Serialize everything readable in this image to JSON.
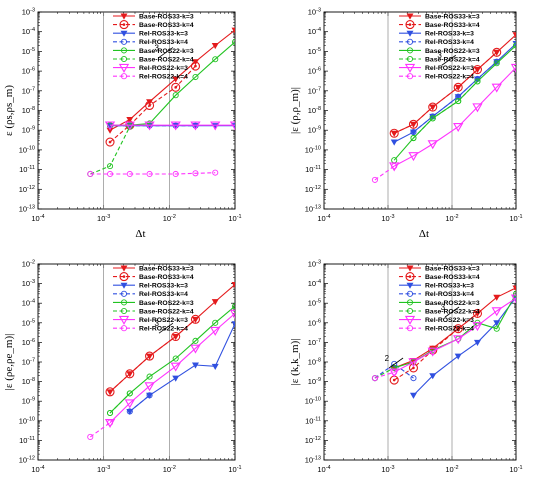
{
  "colors": {
    "Base-ROS33": "#e41a1c",
    "Rel-ROS33": "#3050e0",
    "Base-ROS22": "#21c321",
    "Rel-ROS22": "#ff33ff"
  },
  "legend_entries": [
    "Base-ROS33-k=3",
    "Base-ROS33-k=4",
    "Rel-ROS33-k=3",
    "Rel-ROS33-k=4",
    "Base-ROS22-k=3",
    "Base-ROS22-k=4",
    "Rel-ROS22-k=3",
    "Rel-ROS22-k=4"
  ],
  "chart_data": [
    {
      "type": "line",
      "xscale": "log",
      "yscale": "log",
      "xlim": [
        0.0001,
        0.1
      ],
      "ylim": [
        1e-13,
        0.001
      ],
      "xlabel": "Δt",
      "ylabel": "ε (ρs,ρs_m)",
      "yticks": [
        "10^-13",
        "10^-12",
        "10^-11",
        "10^-10",
        "10^-9",
        "10^-8",
        "10^-7",
        "10^-6",
        "10^-5",
        "10^-4",
        "10^-3"
      ],
      "xticks": [
        "10^-4",
        "10^-3",
        "10^-2",
        "10^-1"
      ],
      "legend": "top-right",
      "slope_annotations": [
        {
          "text": "3",
          "x": 0.008,
          "y": 1e-05
        }
      ],
      "series": [
        {
          "name": "Base-ROS33-k=3",
          "color": "#e41a1c",
          "dash": false,
          "marker": "tri",
          "x": [
            0.00125,
            0.0025,
            0.005,
            0.0125,
            0.025,
            0.05,
            0.1
          ],
          "y": [
            1e-09,
            3.5e-09,
            2.8e-08,
            4e-07,
            3e-06,
            2e-05,
            0.00012
          ]
        },
        {
          "name": "Base-ROS33-k=4",
          "color": "#e41a1c",
          "dash": true,
          "marker": "circle",
          "x": [
            0.00125,
            0.0025,
            0.005,
            0.0125,
            0.025
          ],
          "y": [
            2.5e-10,
            1.8e-09,
            1.8e-08,
            1.5e-07,
            1.8e-06
          ]
        },
        {
          "name": "Rel-ROS33-k=3",
          "color": "#3050e0",
          "dash": false,
          "marker": "tri",
          "x": [
            0.00125,
            0.0025,
            0.005,
            0.0125,
            0.025,
            0.05,
            0.1
          ],
          "y": [
            1.7e-09,
            1.7e-09,
            1.7e-09,
            1.7e-09,
            1.7e-09,
            1.7e-09,
            1.7e-09
          ]
        },
        {
          "name": "Rel-ROS33-k=4",
          "color": "#3050e0",
          "dash": true,
          "marker": "circle",
          "x": [
            0.00125,
            0.0025,
            0.005,
            0.0125,
            0.025
          ],
          "y": [
            1.7e-09,
            1.7e-09,
            1.7e-09,
            1.7e-09,
            1.7e-09
          ]
        },
        {
          "name": "Base-ROS22-k=3",
          "color": "#21c321",
          "dash": false,
          "marker": "circle",
          "x": [
            0.00125,
            0.0025,
            0.005,
            0.0125,
            0.025,
            0.05,
            0.1
          ],
          "y": [
            1.8e-09,
            1.8e-09,
            2.2e-09,
            6e-08,
            5e-07,
            4e-06,
            3e-05
          ]
        },
        {
          "name": "Base-ROS22-k=4",
          "color": "#21c321",
          "dash": true,
          "marker": "circle",
          "x": [
            0.000625,
            0.00125,
            0.0025
          ],
          "y": [
            6e-12,
            1.5e-11,
            1.5e-09
          ]
        },
        {
          "name": "Rel-ROS22-k=3",
          "color": "#ff33ff",
          "dash": false,
          "marker": "tri",
          "x": [
            0.00125,
            0.0025,
            0.005,
            0.0125,
            0.025,
            0.05,
            0.1
          ],
          "y": [
            1.8e-09,
            1.8e-09,
            1.8e-09,
            1.8e-09,
            1.8e-09,
            1.8e-09,
            1.8e-09
          ]
        },
        {
          "name": "Rel-ROS22-k=4",
          "color": "#ff33ff",
          "dash": true,
          "marker": "circle",
          "x": [
            0.000625,
            0.00125,
            0.0025,
            0.005,
            0.0125,
            0.025,
            0.05
          ],
          "y": [
            6e-12,
            6e-12,
            6e-12,
            6e-12,
            6e-12,
            6.5e-12,
            7e-12
          ]
        }
      ]
    },
    {
      "type": "line",
      "xscale": "log",
      "yscale": "log",
      "xlim": [
        0.0001,
        0.1
      ],
      "ylim": [
        1e-13,
        0.001
      ],
      "xlabel": "Δt",
      "ylabel": "|ε (ρ,ρ_m)|",
      "yticks": [
        "10^-13",
        "10^-12",
        "10^-11",
        "10^-10",
        "10^-9",
        "10^-8",
        "10^-7",
        "10^-6",
        "10^-5",
        "10^-4",
        "10^-3"
      ],
      "xticks": [
        "10^-4",
        "10^-3",
        "10^-2",
        "10^-1"
      ],
      "legend": "top-right",
      "slope_annotations": [
        {
          "text": "3",
          "x": 0.008,
          "y": 4e-06
        }
      ],
      "series": [
        {
          "name": "Base-ROS33-k=3",
          "color": "#e41a1c",
          "dash": false,
          "marker": "tri",
          "x": [
            0.00125,
            0.0025,
            0.005,
            0.0125,
            0.025,
            0.05,
            0.1
          ],
          "y": [
            7e-10,
            2e-09,
            1.5e-08,
            1.5e-07,
            1.2e-06,
            9e-06,
            7e-05
          ]
        },
        {
          "name": "Base-ROS33-k=4",
          "color": "#e41a1c",
          "dash": true,
          "marker": "circle",
          "x": [
            0.00125,
            0.0025,
            0.005,
            0.0125,
            0.025,
            0.05
          ],
          "y": [
            7e-10,
            2e-09,
            1.5e-08,
            1.5e-07,
            1.2e-06,
            9e-06
          ]
        },
        {
          "name": "Rel-ROS33-k=3",
          "color": "#3050e0",
          "dash": false,
          "marker": "tri",
          "x": [
            0.00125,
            0.0025,
            0.005,
            0.0125,
            0.025,
            0.05,
            0.1
          ],
          "y": [
            2.5e-10,
            8e-10,
            5e-09,
            5e-08,
            4e-07,
            3e-06,
            2.5e-05
          ]
        },
        {
          "name": "Rel-ROS33-k=4",
          "color": "#3050e0",
          "dash": true,
          "marker": "circle",
          "x": [
            0.0025,
            0.005,
            0.0125,
            0.025,
            0.05
          ],
          "y": [
            8e-10,
            5e-09,
            5e-08,
            4e-07,
            3e-06
          ]
        },
        {
          "name": "Base-ROS22-k=3",
          "color": "#21c321",
          "dash": false,
          "marker": "circle",
          "x": [
            0.00125,
            0.0025,
            0.005,
            0.0125,
            0.025,
            0.05,
            0.1
          ],
          "y": [
            3e-11,
            4e-10,
            4e-09,
            3e-08,
            3e-07,
            2.5e-06,
            2e-05
          ]
        },
        {
          "name": "Base-ROS22-k=4",
          "color": "#21c321",
          "dash": true,
          "marker": "circle",
          "x": [
            0.0025,
            0.005,
            0.0125,
            0.025
          ],
          "y": [
            4e-10,
            4e-09,
            3e-08,
            3e-07
          ]
        },
        {
          "name": "Rel-ROS22-k=3",
          "color": "#ff33ff",
          "dash": false,
          "marker": "tri",
          "x": [
            0.00125,
            0.0025,
            0.005,
            0.0125,
            0.025,
            0.05,
            0.1
          ],
          "y": [
            1.5e-11,
            5e-11,
            2e-10,
            1.5e-09,
            1.5e-08,
            1.5e-07,
            1.5e-06
          ]
        },
        {
          "name": "Rel-ROS22-k=4",
          "color": "#ff33ff",
          "dash": true,
          "marker": "circle",
          "x": [
            0.000625,
            0.00125
          ],
          "y": [
            3e-12,
            1.5e-11
          ]
        }
      ]
    },
    {
      "type": "line",
      "xscale": "log",
      "yscale": "log",
      "xlim": [
        0.0001,
        0.1
      ],
      "ylim": [
        1e-12,
        0.01
      ],
      "xlabel": "Δt",
      "ylabel": "|ε (ρe,ρe_m)|",
      "yticks": [
        "10^-12",
        "10^-11",
        "10^-10",
        "10^-9",
        "10^-8",
        "10^-7",
        "10^-6",
        "10^-5",
        "10^-4",
        "10^-3",
        "10^-2"
      ],
      "xticks": [
        "10^-4",
        "10^-3",
        "10^-2",
        "10^-1"
      ],
      "legend": "top-right",
      "slope_annotations": [
        {
          "text": "3",
          "x": 0.008,
          "y": 6e-06
        }
      ],
      "series": [
        {
          "name": "Base-ROS33-k=3",
          "color": "#e41a1c",
          "dash": false,
          "marker": "tri",
          "x": [
            0.00125,
            0.0025,
            0.005,
            0.0125,
            0.025,
            0.05,
            0.1
          ],
          "y": [
            3e-09,
            2.5e-08,
            2e-07,
            2e-06,
            1.5e-05,
            0.00012,
            0.0009
          ]
        },
        {
          "name": "Base-ROS33-k=4",
          "color": "#e41a1c",
          "dash": true,
          "marker": "circle",
          "x": [
            0.00125,
            0.0025,
            0.005,
            0.0125,
            0.025
          ],
          "y": [
            3e-09,
            2.5e-08,
            2e-07,
            2e-06,
            1.5e-05
          ]
        },
        {
          "name": "Rel-ROS33-k=3",
          "color": "#3050e0",
          "dash": false,
          "marker": "tri",
          "x": [
            0.0025,
            0.005,
            0.0125,
            0.025,
            0.05,
            0.1
          ],
          "y": [
            3e-10,
            2e-09,
            1.5e-08,
            7e-08,
            6e-08,
            9e-06
          ]
        },
        {
          "name": "Rel-ROS33-k=4",
          "color": "#3050e0",
          "dash": true,
          "marker": "circle",
          "x": [
            0.0025,
            0.005
          ],
          "y": [
            3e-10,
            2e-09
          ]
        },
        {
          "name": "Base-ROS22-k=3",
          "color": "#21c321",
          "dash": false,
          "marker": "circle",
          "x": [
            0.00125,
            0.0025,
            0.005,
            0.0125,
            0.025,
            0.05,
            0.1
          ],
          "y": [
            2.5e-10,
            2.5e-09,
            1.8e-08,
            1.5e-07,
            1.2e-06,
            1e-05,
            7e-05
          ]
        },
        {
          "name": "Base-ROS22-k=4",
          "color": "#21c321",
          "dash": true,
          "marker": "circle",
          "x": [
            0.00125,
            0.0025
          ],
          "y": [
            2.5e-10,
            2.5e-09
          ]
        },
        {
          "name": "Rel-ROS22-k=3",
          "color": "#ff33ff",
          "dash": false,
          "marker": "tri",
          "x": [
            0.00125,
            0.0025,
            0.005,
            0.0125,
            0.025,
            0.05,
            0.1
          ],
          "y": [
            8e-11,
            8e-10,
            6e-09,
            6e-08,
            5e-07,
            4e-06,
            3e-05
          ]
        },
        {
          "name": "Rel-ROS22-k=4",
          "color": "#ff33ff",
          "dash": true,
          "marker": "circle",
          "x": [
            0.000625,
            0.00125
          ],
          "y": [
            1.5e-11,
            8e-11
          ]
        }
      ]
    },
    {
      "type": "line",
      "xscale": "log",
      "yscale": "log",
      "xlim": [
        0.0001,
        0.1
      ],
      "ylim": [
        1e-13,
        0.001
      ],
      "xlabel": "Δt",
      "ylabel": "|ε (k,k_m)|",
      "yticks": [
        "10^-13",
        "10^-12",
        "10^-11",
        "10^-10",
        "10^-9",
        "10^-8",
        "10^-7",
        "10^-6",
        "10^-5",
        "10^-4",
        "10^-3"
      ],
      "xticks": [
        "10^-4",
        "10^-3",
        "10^-2",
        "10^-1"
      ],
      "legend": "top-right",
      "slope_annotations": [
        {
          "text": "3",
          "x": 0.009,
          "y": 4e-06
        },
        {
          "text": "2",
          "x": 0.0012,
          "y": 1e-08
        }
      ],
      "series": [
        {
          "name": "Base-ROS33-k=3",
          "color": "#e41a1c",
          "dash": false,
          "marker": "tri",
          "x": [
            0.00125,
            0.0025,
            0.005,
            0.0125,
            0.025,
            0.05,
            0.1
          ],
          "y": [
            5e-09,
            1.2e-08,
            5e-08,
            5e-07,
            3e-06,
            2e-05,
            6e-05
          ]
        },
        {
          "name": "Base-ROS33-k=4",
          "color": "#e41a1c",
          "dash": true,
          "marker": "circle",
          "x": [
            0.00125,
            0.0025,
            0.005,
            0.0125,
            0.025
          ],
          "y": [
            1.2e-09,
            5e-09,
            4e-08,
            5e-07,
            3e-06
          ]
        },
        {
          "name": "Rel-ROS33-k=3",
          "color": "#3050e0",
          "dash": false,
          "marker": "tri",
          "x": [
            0.0025,
            0.005,
            0.0125,
            0.025,
            0.05,
            0.1
          ],
          "y": [
            2e-10,
            2e-09,
            2e-08,
            1e-07,
            1e-06,
            2e-05
          ]
        },
        {
          "name": "Rel-ROS33-k=4",
          "color": "#3050e0",
          "dash": true,
          "marker": "circle",
          "x": [
            0.000625,
            0.00125,
            0.0025
          ],
          "y": [
            1.5e-09,
            8e-09,
            1.5e-09
          ]
        },
        {
          "name": "Base-ROS22-k=3",
          "color": "#21c321",
          "dash": false,
          "marker": "circle",
          "x": [
            0.00125,
            0.0025,
            0.005,
            0.0125,
            0.025,
            0.05,
            0.1
          ],
          "y": [
            5e-09,
            1e-08,
            4e-08,
            1.5e-07,
            1e-06,
            5e-07,
            3e-05
          ]
        },
        {
          "name": "Base-ROS22-k=4",
          "color": "#21c321",
          "dash": true,
          "marker": "circle",
          "x": [
            0.000625,
            0.00125
          ],
          "y": [
            1.5e-09,
            5e-09
          ]
        },
        {
          "name": "Rel-ROS22-k=3",
          "color": "#ff33ff",
          "dash": false,
          "marker": "tri",
          "x": [
            0.00125,
            0.0025,
            0.005,
            0.0125,
            0.025,
            0.05,
            0.1
          ],
          "y": [
            3e-09,
            1e-08,
            3.5e-08,
            1.5e-07,
            7e-07,
            4e-06,
            1.8e-05
          ]
        },
        {
          "name": "Rel-ROS22-k=4",
          "color": "#ff33ff",
          "dash": true,
          "marker": "circle",
          "x": [
            0.000625,
            0.00125
          ],
          "y": [
            1.5e-09,
            3e-09
          ]
        }
      ]
    }
  ]
}
